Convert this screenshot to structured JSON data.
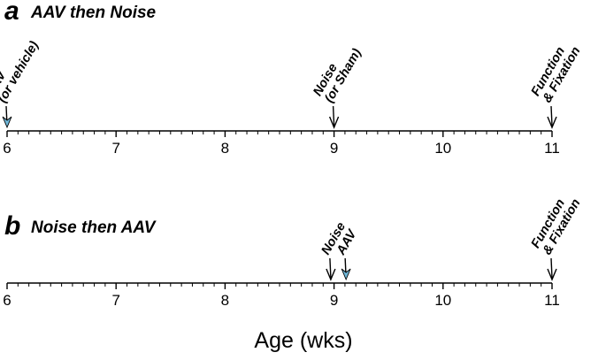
{
  "axis_title": "Age (wks)",
  "tick_labels": [
    "6",
    "7",
    "8",
    "9",
    "10",
    "11"
  ],
  "colors": {
    "aav_arrow": "#6fb7d8",
    "line": "#000000"
  },
  "panels": [
    {
      "letter": "a",
      "title": "AAV then Noise",
      "events": [
        {
          "week": 6,
          "lines": [
            "AAV",
            "(or vehicle)"
          ],
          "arrow": "filled"
        },
        {
          "week": 9,
          "lines": [
            "Noise",
            "(or Sham)"
          ],
          "arrow": "open"
        },
        {
          "week": 11,
          "lines": [
            "Function",
            "& Fixation"
          ],
          "arrow": "open"
        }
      ]
    },
    {
      "letter": "b",
      "title": "Noise then AAV",
      "events": [
        {
          "week": 8.97,
          "lines": [
            "Noise"
          ],
          "arrow": "open"
        },
        {
          "week": 9.11,
          "lines": [
            "AAV"
          ],
          "arrow": "filled"
        },
        {
          "week": 11,
          "lines": [
            "Function",
            "& Fixation"
          ],
          "arrow": "open"
        }
      ]
    }
  ]
}
